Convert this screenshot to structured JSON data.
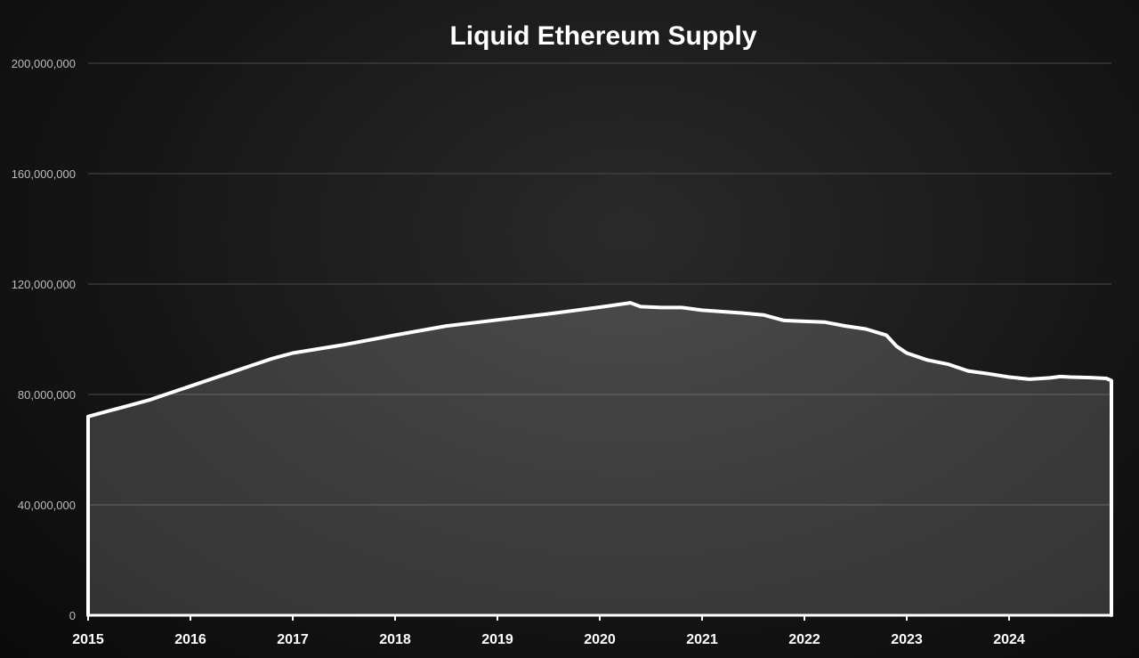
{
  "chart_data": {
    "type": "area",
    "title": "Liquid Ethereum Supply",
    "xlabel": "",
    "ylabel": "",
    "xlim": [
      2015.0,
      2025.0
    ],
    "ylim": [
      0,
      200000000
    ],
    "x_ticks": [
      "2015",
      "2016",
      "2017",
      "2018",
      "2019",
      "2020",
      "2021",
      "2022",
      "2023",
      "2024"
    ],
    "x_tick_values": [
      2015,
      2016,
      2017,
      2018,
      2019,
      2020,
      2021,
      2022,
      2023,
      2024
    ],
    "y_ticks": [
      "0",
      "40,000,000",
      "80,000,000",
      "120,000,000",
      "160,000,000",
      "200,000,000"
    ],
    "y_tick_values": [
      0,
      40000000,
      80000000,
      120000000,
      160000000,
      200000000
    ],
    "grid": true,
    "legend": "none",
    "colors": {
      "line": "#ffffff",
      "fill": "#ffffff",
      "grid": "#4a4a4a",
      "title": "#ffffff"
    },
    "series": [
      {
        "x": [
          2015.0,
          2015.2,
          2015.4,
          2015.6,
          2015.8,
          2016.0,
          2016.2,
          2016.4,
          2016.6,
          2016.8,
          2017.0,
          2017.5,
          2018.0,
          2018.5,
          2019.0,
          2019.5,
          2020.0,
          2020.3,
          2020.4,
          2020.6,
          2020.8,
          2021.0,
          2021.2,
          2021.4,
          2021.6,
          2021.8,
          2022.0,
          2022.2,
          2022.4,
          2022.6,
          2022.8,
          2022.9,
          2023.0,
          2023.2,
          2023.4,
          2023.6,
          2023.8,
          2024.0,
          2024.2,
          2024.4,
          2024.5,
          2024.6,
          2024.8,
          2024.95,
          2025.0
        ],
        "values": [
          72000000,
          74000000,
          76000000,
          78000000,
          80500000,
          83000000,
          85500000,
          88000000,
          90500000,
          93000000,
          95000000,
          98000000,
          101500000,
          104800000,
          107000000,
          109200000,
          111600000,
          113200000,
          111800000,
          111500000,
          111500000,
          110500000,
          110000000,
          109500000,
          108800000,
          106800000,
          106500000,
          106200000,
          104800000,
          103700000,
          101500000,
          97500000,
          95000000,
          92500000,
          91000000,
          88500000,
          87500000,
          86300000,
          85500000,
          86000000,
          86500000,
          86300000,
          86100000,
          85800000,
          85000000
        ]
      }
    ]
  }
}
